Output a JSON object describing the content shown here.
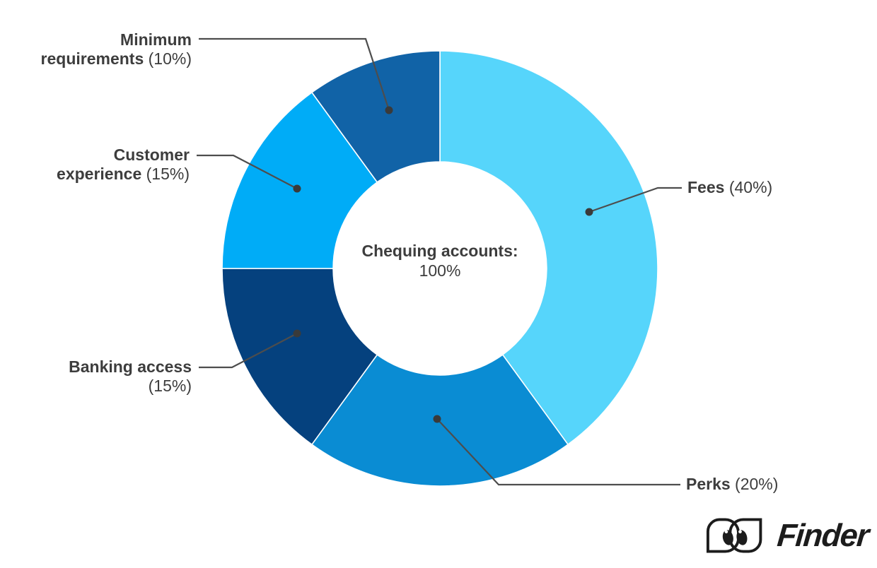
{
  "chart_data": {
    "type": "pie",
    "subtype": "donut",
    "direction": "clockwise",
    "start_angle_deg": 0,
    "donut_hole_ratio": 0.49,
    "center_label": {
      "line1": "Chequing accounts:",
      "line2": "100%"
    },
    "segments": [
      {
        "name": "Fees",
        "value": 40,
        "color": "#56D5FB",
        "label": {
          "line1_bold": "Fees",
          "line1_reg": " (40%)"
        }
      },
      {
        "name": "Perks",
        "value": 20,
        "color": "#0A8CD3",
        "label": {
          "line1_bold": "Perks",
          "line1_reg": " (20%)"
        }
      },
      {
        "name": "Banking access",
        "value": 15,
        "color": "#05417E",
        "label": {
          "line1_bold": "Banking access",
          "line2_reg": "(15%)"
        }
      },
      {
        "name": "Customer experience",
        "value": 15,
        "color": "#00ACF7",
        "label": {
          "line1_bold": "Customer",
          "line2_bold": "experience",
          "line2_reg": " (15%)"
        }
      },
      {
        "name": "Minimum requirements",
        "value": 10,
        "color": "#1163A7",
        "label": {
          "line1_bold": "Minimum",
          "line2_bold": "requirements",
          "line2_reg": " (10%)"
        }
      }
    ],
    "leader_line_color": "#4d4d4d",
    "leader_dot_color": "#3a3a3a",
    "text_color": "#3d3d3d"
  },
  "branding": {
    "logo_text": "Finder"
  }
}
